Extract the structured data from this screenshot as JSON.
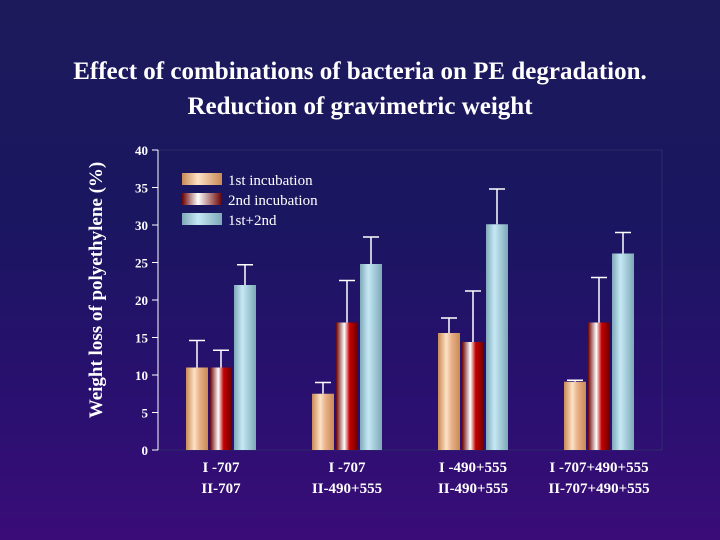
{
  "chart_data": {
    "type": "bar",
    "title": "Effect of combinations of bacteria  on PE degradation.",
    "subtitle": "Reduction of gravimetric weight",
    "ylabel": "Weight loss of polyethylene (%)",
    "xlabel": "",
    "ylim": [
      0,
      40
    ],
    "yticks": [
      0,
      5,
      10,
      15,
      20,
      25,
      30,
      35,
      40
    ],
    "categories": [
      [
        "I -707",
        "II-707"
      ],
      [
        "I -707",
        "II-490+555"
      ],
      [
        "I -490+555",
        "II-490+555"
      ],
      [
        "I -707+490+555",
        "II-707+490+555"
      ]
    ],
    "series": [
      {
        "name": "1st incubation",
        "values": [
          11.0,
          7.5,
          15.6,
          9.1
        ],
        "errors": [
          3.6,
          1.5,
          2.0,
          0.2
        ]
      },
      {
        "name": "2nd incubation",
        "values": [
          11.0,
          17.0,
          14.4,
          17.0
        ],
        "errors": [
          2.3,
          5.6,
          6.8,
          6.0
        ]
      },
      {
        "name": "1st+2nd",
        "values": [
          22.0,
          24.8,
          30.1,
          26.2
        ],
        "errors": [
          2.7,
          3.6,
          4.7,
          2.8
        ]
      }
    ],
    "legend_position": "top-left",
    "colors": {
      "series_light": [
        "#fde2c4",
        "#ffffff",
        "#c6e8f4"
      ],
      "series_dark": [
        "#c98a55",
        "#6a0000",
        "#7fa8b8"
      ],
      "series_mid": [
        "#e8b088",
        "#c60000",
        "#a8d0dc"
      ],
      "plot_border": "#2e2a6a"
    }
  }
}
